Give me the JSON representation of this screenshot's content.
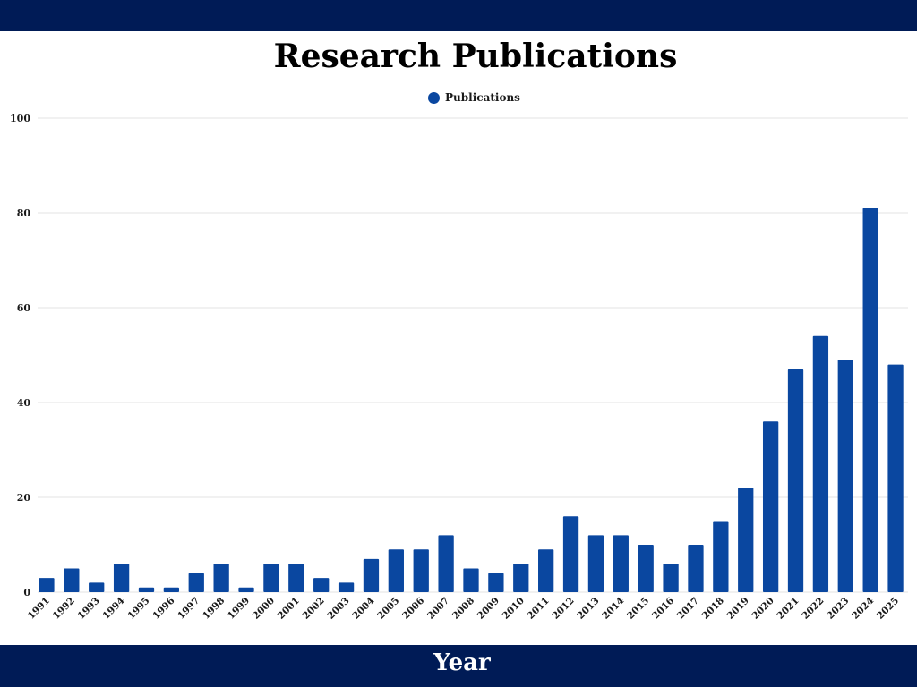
{
  "chart_data": {
    "type": "bar",
    "title": "Research Publications",
    "xlabel": "Year",
    "ylabel": "",
    "ylim": [
      0,
      100
    ],
    "yticks": [
      0,
      20,
      40,
      60,
      80,
      100
    ],
    "grid": true,
    "legend_position": "top-center",
    "categories": [
      "1991",
      "1992",
      "1993",
      "1994",
      "1995",
      "1996",
      "1997",
      "1998",
      "1999",
      "2000",
      "2001",
      "2002",
      "2003",
      "2004",
      "2005",
      "2006",
      "2007",
      "2008",
      "2009",
      "2010",
      "2011",
      "2012",
      "2013",
      "2014",
      "2015",
      "2016",
      "2017",
      "2018",
      "2019",
      "2020",
      "2021",
      "2022",
      "2023",
      "2024",
      "2025"
    ],
    "series": [
      {
        "name": "Publications",
        "color": "#0a47a0",
        "values": [
          3,
          5,
          2,
          6,
          1,
          1,
          4,
          6,
          1,
          6,
          6,
          3,
          2,
          7,
          9,
          9,
          12,
          5,
          4,
          6,
          9,
          16,
          12,
          12,
          10,
          6,
          10,
          15,
          22,
          36,
          47,
          54,
          49,
          81,
          48
        ]
      }
    ]
  },
  "colors": {
    "band": "#001b56",
    "bar": "#0a47a0",
    "grid": "#e3e3e3"
  }
}
